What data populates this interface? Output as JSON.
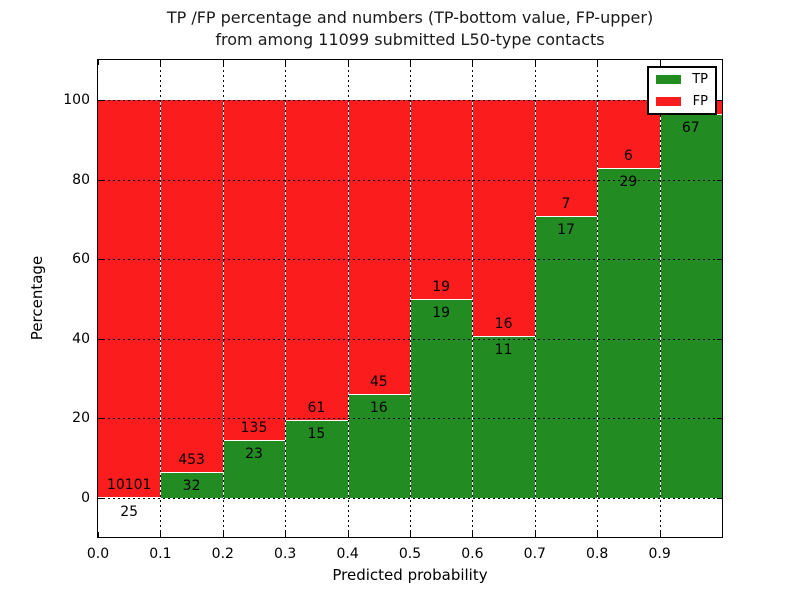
{
  "title": {
    "line1": "TP /FP percentage and numbers (TP-bottom value, FP-upper)",
    "line2": "from among 11099 submitted L50-type contacts"
  },
  "chart_data": {
    "type": "bar",
    "stacked": true,
    "title": "TP /FP percentage and numbers (TP-bottom value, FP-upper) from among 11099 submitted L50-type contacts",
    "xlabel": "Predicted probability",
    "ylabel": "Percentage",
    "x_tick_labels": [
      "0.0",
      "0.1",
      "0.2",
      "0.3",
      "0.4",
      "0.5",
      "0.6",
      "0.7",
      "0.8",
      "0.9"
    ],
    "y_ticks": [
      0,
      20,
      40,
      60,
      80,
      100
    ],
    "ylim": [
      -10,
      110
    ],
    "xlim": [
      0.0,
      1.0
    ],
    "bin_width": 0.1,
    "grid": true,
    "total_contacts": 11099,
    "bins": [
      {
        "range": "0.0-0.1",
        "tp": 25,
        "fp": 10101,
        "tp_percent": 0.25
      },
      {
        "range": "0.1-0.2",
        "tp": 32,
        "fp": 453,
        "tp_percent": 6.6
      },
      {
        "range": "0.2-0.3",
        "tp": 23,
        "fp": 135,
        "tp_percent": 14.6
      },
      {
        "range": "0.3-0.4",
        "tp": 15,
        "fp": 61,
        "tp_percent": 19.7
      },
      {
        "range": "0.4-0.5",
        "tp": 16,
        "fp": 45,
        "tp_percent": 26.2
      },
      {
        "range": "0.5-0.6",
        "tp": 19,
        "fp": 19,
        "tp_percent": 50.0
      },
      {
        "range": "0.6-0.7",
        "tp": 11,
        "fp": 16,
        "tp_percent": 40.7
      },
      {
        "range": "0.7-0.8",
        "tp": 17,
        "fp": 7,
        "tp_percent": 70.8
      },
      {
        "range": "0.8-0.9",
        "tp": 29,
        "fp": 6,
        "tp_percent": 82.9
      },
      {
        "range": "0.9-1.0",
        "tp": 67,
        "fp": null,
        "tp_percent": 96.5
      }
    ],
    "series": [
      {
        "name": "TP",
        "color": "#228b22"
      },
      {
        "name": "FP",
        "color": "#fb1d1d"
      }
    ],
    "legend": {
      "position": "upper right"
    }
  }
}
